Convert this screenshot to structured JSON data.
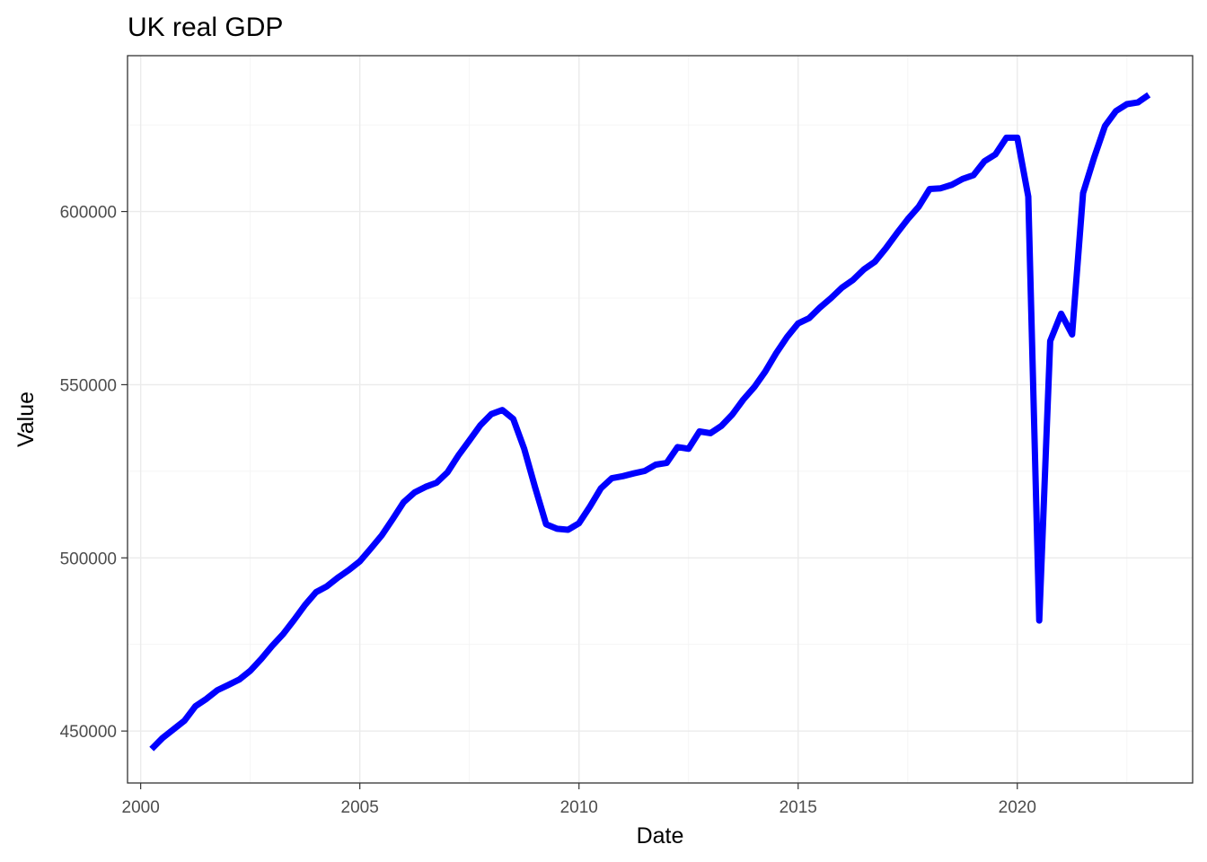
{
  "chart_data": {
    "type": "line",
    "title": "UK real GDP",
    "xlabel": "Date",
    "ylabel": "Value",
    "x_ticks": [
      2000,
      2005,
      2010,
      2015,
      2020
    ],
    "y_ticks": [
      450000,
      500000,
      550000,
      600000
    ],
    "xlim": [
      1999.7,
      2024.0
    ],
    "ylim": [
      435000,
      645000
    ],
    "grid": true,
    "line_color": "#0000ff",
    "series": [
      {
        "x": [
          2000.25,
          2000.5,
          2000.75,
          2001.0,
          2001.25,
          2001.5,
          2001.75,
          2002.0,
          2002.25,
          2002.5,
          2002.75,
          2003.0,
          2003.25,
          2003.5,
          2003.75,
          2004.0,
          2004.25,
          2004.5,
          2004.75,
          2005.0,
          2005.25,
          2005.5,
          2005.75,
          2006.0,
          2006.25,
          2006.5,
          2006.75,
          2007.0,
          2007.25,
          2007.5,
          2007.75,
          2008.0,
          2008.25,
          2008.5,
          2008.75,
          2009.0,
          2009.25,
          2009.5,
          2009.75,
          2010.0,
          2010.25,
          2010.5,
          2010.75,
          2011.0,
          2011.25,
          2011.5,
          2011.75,
          2012.0,
          2012.25,
          2012.5,
          2012.75,
          2013.0,
          2013.25,
          2013.5,
          2013.75,
          2014.0,
          2014.25,
          2014.5,
          2014.75,
          2015.0,
          2015.25,
          2015.5,
          2015.75,
          2016.0,
          2016.25,
          2016.5,
          2016.75,
          2017.0,
          2017.25,
          2017.5,
          2017.75,
          2018.0,
          2018.25,
          2018.5,
          2018.75,
          2019.0,
          2019.25,
          2019.5,
          2019.75,
          2020.0,
          2020.25,
          2020.5,
          2020.75,
          2021.0,
          2021.25,
          2021.5,
          2021.75,
          2022.0,
          2022.25,
          2022.5,
          2022.75,
          2023.0
        ],
        "y": [
          444800,
          448000,
          450500,
          453000,
          457200,
          459300,
          461800,
          463300,
          464900,
          467400,
          470800,
          474600,
          478000,
          482100,
          486400,
          490100,
          491800,
          494300,
          496500,
          499000,
          502700,
          506500,
          511200,
          516100,
          518900,
          520500,
          521700,
          524700,
          529600,
          533900,
          538300,
          541500,
          542700,
          540100,
          531500,
          520300,
          509700,
          508400,
          508100,
          510000,
          514800,
          520100,
          523000,
          523600,
          524400,
          525100,
          526900,
          527400,
          532000,
          531500,
          536500,
          536000,
          538100,
          541400,
          545700,
          549300,
          553800,
          559100,
          563800,
          567700,
          569200,
          572300,
          575000,
          578000,
          580200,
          583300,
          585500,
          589400,
          593700,
          597800,
          601400,
          606500,
          606700,
          607700,
          609400,
          610500,
          614500,
          616500,
          621300,
          621300,
          604300,
          481900,
          562600,
          570500,
          564500,
          605300,
          615500,
          624700,
          629000,
          631000,
          631500,
          633700
        ]
      }
    ]
  }
}
